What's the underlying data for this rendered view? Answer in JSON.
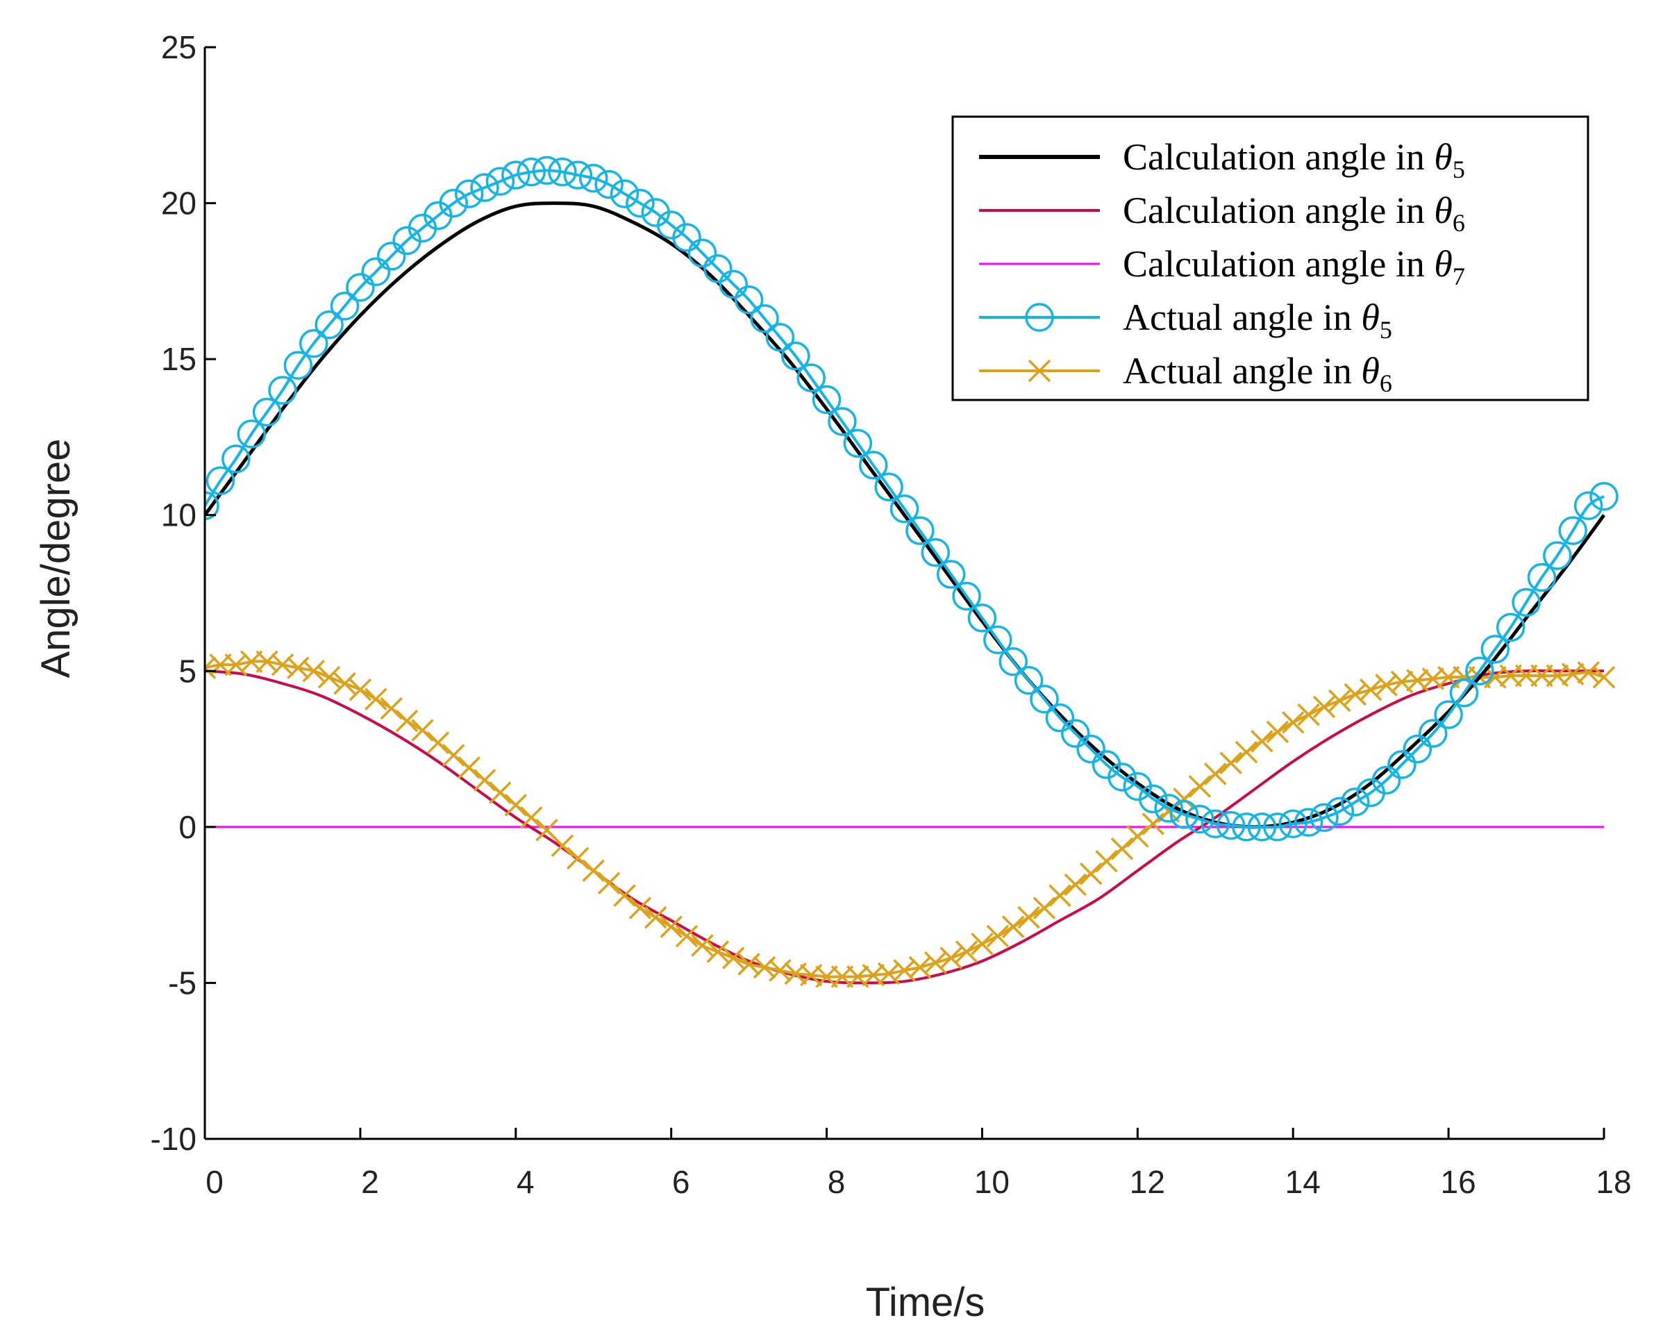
{
  "chart_data": {
    "type": "line",
    "xlabel": "Time/s",
    "ylabel": "Angle/degree",
    "xlim": [
      0,
      18
    ],
    "ylim": [
      -10,
      25
    ],
    "xticks": [
      0,
      2,
      4,
      6,
      8,
      10,
      12,
      14,
      16,
      18
    ],
    "yticks": [
      -10,
      -5,
      0,
      5,
      10,
      15,
      20,
      25
    ],
    "grid": false,
    "legend_position": "top-right",
    "series": [
      {
        "id": "calc5",
        "name": "Calculation angle in θ5",
        "prefix": "Calculation angle in ",
        "symbol": "θ",
        "sub": "5",
        "color": "#000000",
        "marker": "none",
        "x": [
          0,
          0.5,
          1,
          1.5,
          2,
          2.5,
          3,
          3.5,
          4,
          4.5,
          5,
          5.5,
          6,
          6.5,
          7,
          7.5,
          8,
          8.5,
          9,
          9.5,
          10,
          10.5,
          11,
          11.5,
          12,
          12.5,
          13,
          13.5,
          14,
          14.5,
          15,
          15.5,
          16,
          16.5,
          17,
          17.5,
          18
        ],
        "values": [
          10.0,
          11.7,
          13.4,
          15.0,
          16.4,
          17.6,
          18.6,
          19.4,
          19.9,
          20.0,
          19.9,
          19.4,
          18.7,
          17.7,
          16.4,
          15.0,
          13.4,
          11.7,
          10.0,
          8.3,
          6.6,
          5.0,
          3.6,
          2.4,
          1.4,
          0.6,
          0.15,
          0.0,
          0.15,
          0.6,
          1.4,
          2.5,
          3.7,
          5.1,
          6.7,
          8.3,
          10.0
        ]
      },
      {
        "id": "calc6",
        "name": "Calculation angle in θ6",
        "prefix": "Calculation angle in ",
        "symbol": "θ",
        "sub": "6",
        "color": "#cc0a4a",
        "marker": "none",
        "x": [
          0,
          0.5,
          1,
          1.5,
          2,
          2.5,
          3,
          3.5,
          4,
          4.5,
          5,
          5.5,
          6,
          6.5,
          7,
          7.5,
          8,
          8.5,
          9,
          9.5,
          10,
          10.5,
          11,
          11.5,
          12,
          12.5,
          13,
          13.5,
          14,
          14.5,
          15,
          15.5,
          16,
          16.5,
          17,
          17.5,
          18
        ],
        "values": [
          5.0,
          4.9,
          4.6,
          4.2,
          3.6,
          2.9,
          2.1,
          1.2,
          0.3,
          -0.5,
          -1.4,
          -2.3,
          -3.0,
          -3.7,
          -4.3,
          -4.7,
          -4.95,
          -5.0,
          -4.95,
          -4.7,
          -4.3,
          -3.7,
          -3.0,
          -2.3,
          -1.4,
          -0.5,
          0.3,
          1.2,
          2.1,
          2.9,
          3.6,
          4.2,
          4.6,
          4.9,
          5.0,
          5.0,
          5.0
        ]
      },
      {
        "id": "calc7",
        "name": "Calculation angle in θ7",
        "prefix": "Calculation angle in ",
        "symbol": "θ",
        "sub": "7",
        "color": "#ff00ff",
        "marker": "none",
        "x": [
          0,
          18
        ],
        "values": [
          0,
          0
        ]
      },
      {
        "id": "act5",
        "name": "Actual angle in θ5",
        "prefix": " Actual angle in ",
        "symbol": "θ",
        "sub": "5",
        "color": "#14b4e6",
        "marker": "circle",
        "x": [
          0,
          0.2,
          0.4,
          0.6,
          0.8,
          1.0,
          1.2,
          1.4,
          1.6,
          1.8,
          2.0,
          2.2,
          2.4,
          2.6,
          2.8,
          3.0,
          3.2,
          3.4,
          3.6,
          3.8,
          4.0,
          4.2,
          4.4,
          4.6,
          4.8,
          5.0,
          5.2,
          5.4,
          5.6,
          5.8,
          6.0,
          6.2,
          6.4,
          6.6,
          6.8,
          7.0,
          7.2,
          7.4,
          7.6,
          7.8,
          8.0,
          8.2,
          8.4,
          8.6,
          8.8,
          9.0,
          9.2,
          9.4,
          9.6,
          9.8,
          10.0,
          10.2,
          10.4,
          10.6,
          10.8,
          11.0,
          11.2,
          11.4,
          11.6,
          11.8,
          12.0,
          12.2,
          12.4,
          12.6,
          12.8,
          13.0,
          13.2,
          13.4,
          13.6,
          13.8,
          14.0,
          14.2,
          14.4,
          14.6,
          14.8,
          15.0,
          15.2,
          15.4,
          15.6,
          15.8,
          16.0,
          16.2,
          16.4,
          16.6,
          16.8,
          17.0,
          17.2,
          17.4,
          17.6,
          17.8,
          18.0
        ],
        "values": [
          10.3,
          11.1,
          11.8,
          12.6,
          13.3,
          14.0,
          14.8,
          15.5,
          16.1,
          16.7,
          17.3,
          17.8,
          18.3,
          18.8,
          19.2,
          19.6,
          20.0,
          20.3,
          20.5,
          20.7,
          20.9,
          21.0,
          21.05,
          21.0,
          20.9,
          20.8,
          20.6,
          20.3,
          20.0,
          19.7,
          19.3,
          18.9,
          18.4,
          17.9,
          17.4,
          16.9,
          16.3,
          15.7,
          15.1,
          14.4,
          13.7,
          13.0,
          12.3,
          11.6,
          10.9,
          10.2,
          9.5,
          8.8,
          8.1,
          7.4,
          6.7,
          6.0,
          5.3,
          4.7,
          4.1,
          3.5,
          3.0,
          2.5,
          2.0,
          1.6,
          1.3,
          0.9,
          0.6,
          0.4,
          0.25,
          0.1,
          0.05,
          0.0,
          0.0,
          0.0,
          0.1,
          0.15,
          0.3,
          0.5,
          0.8,
          1.1,
          1.5,
          2.0,
          2.5,
          3.0,
          3.6,
          4.3,
          5.0,
          5.7,
          6.4,
          7.2,
          8.0,
          8.7,
          9.5,
          10.3,
          10.6
        ]
      },
      {
        "id": "act6",
        "name": "Actual angle in θ6",
        "prefix": " Actual angle in ",
        "symbol": "θ",
        "sub": "6",
        "color": "#dba21a",
        "marker": "x",
        "x": [
          0,
          0.2,
          0.4,
          0.6,
          0.8,
          1.0,
          1.2,
          1.4,
          1.6,
          1.8,
          2.0,
          2.2,
          2.4,
          2.6,
          2.8,
          3.0,
          3.2,
          3.4,
          3.6,
          3.8,
          4.0,
          4.2,
          4.4,
          4.6,
          4.8,
          5.0,
          5.2,
          5.4,
          5.6,
          5.8,
          6.0,
          6.2,
          6.4,
          6.6,
          6.8,
          7.0,
          7.2,
          7.4,
          7.6,
          7.8,
          8.0,
          8.2,
          8.4,
          8.6,
          8.8,
          9.0,
          9.2,
          9.4,
          9.6,
          9.8,
          10.0,
          10.2,
          10.4,
          10.6,
          10.8,
          11.0,
          11.2,
          11.4,
          11.6,
          11.8,
          12.0,
          12.2,
          12.4,
          12.6,
          12.8,
          13.0,
          13.2,
          13.4,
          13.6,
          13.8,
          14.0,
          14.2,
          14.4,
          14.6,
          14.8,
          15.0,
          15.2,
          15.4,
          15.6,
          15.8,
          16.0,
          16.2,
          16.4,
          16.6,
          16.8,
          17.0,
          17.2,
          17.4,
          17.6,
          17.8,
          18.0
        ],
        "values": [
          5.1,
          5.2,
          5.2,
          5.3,
          5.3,
          5.2,
          5.1,
          5.0,
          4.8,
          4.6,
          4.4,
          4.1,
          3.8,
          3.4,
          3.1,
          2.7,
          2.3,
          1.9,
          1.5,
          1.1,
          0.7,
          0.3,
          -0.1,
          -0.6,
          -1.0,
          -1.4,
          -1.8,
          -2.2,
          -2.6,
          -2.9,
          -3.2,
          -3.5,
          -3.8,
          -4.0,
          -4.2,
          -4.4,
          -4.5,
          -4.6,
          -4.7,
          -4.75,
          -4.8,
          -4.8,
          -4.8,
          -4.75,
          -4.7,
          -4.6,
          -4.5,
          -4.35,
          -4.2,
          -4.0,
          -3.75,
          -3.5,
          -3.2,
          -2.9,
          -2.6,
          -2.2,
          -1.85,
          -1.5,
          -1.1,
          -0.7,
          -0.3,
          0.1,
          0.5,
          0.9,
          1.3,
          1.7,
          2.05,
          2.4,
          2.75,
          3.05,
          3.35,
          3.6,
          3.85,
          4.05,
          4.25,
          4.4,
          4.55,
          4.65,
          4.7,
          4.75,
          4.8,
          4.8,
          4.8,
          4.8,
          4.85,
          4.85,
          4.85,
          4.85,
          4.9,
          4.95,
          4.8
        ]
      }
    ]
  }
}
